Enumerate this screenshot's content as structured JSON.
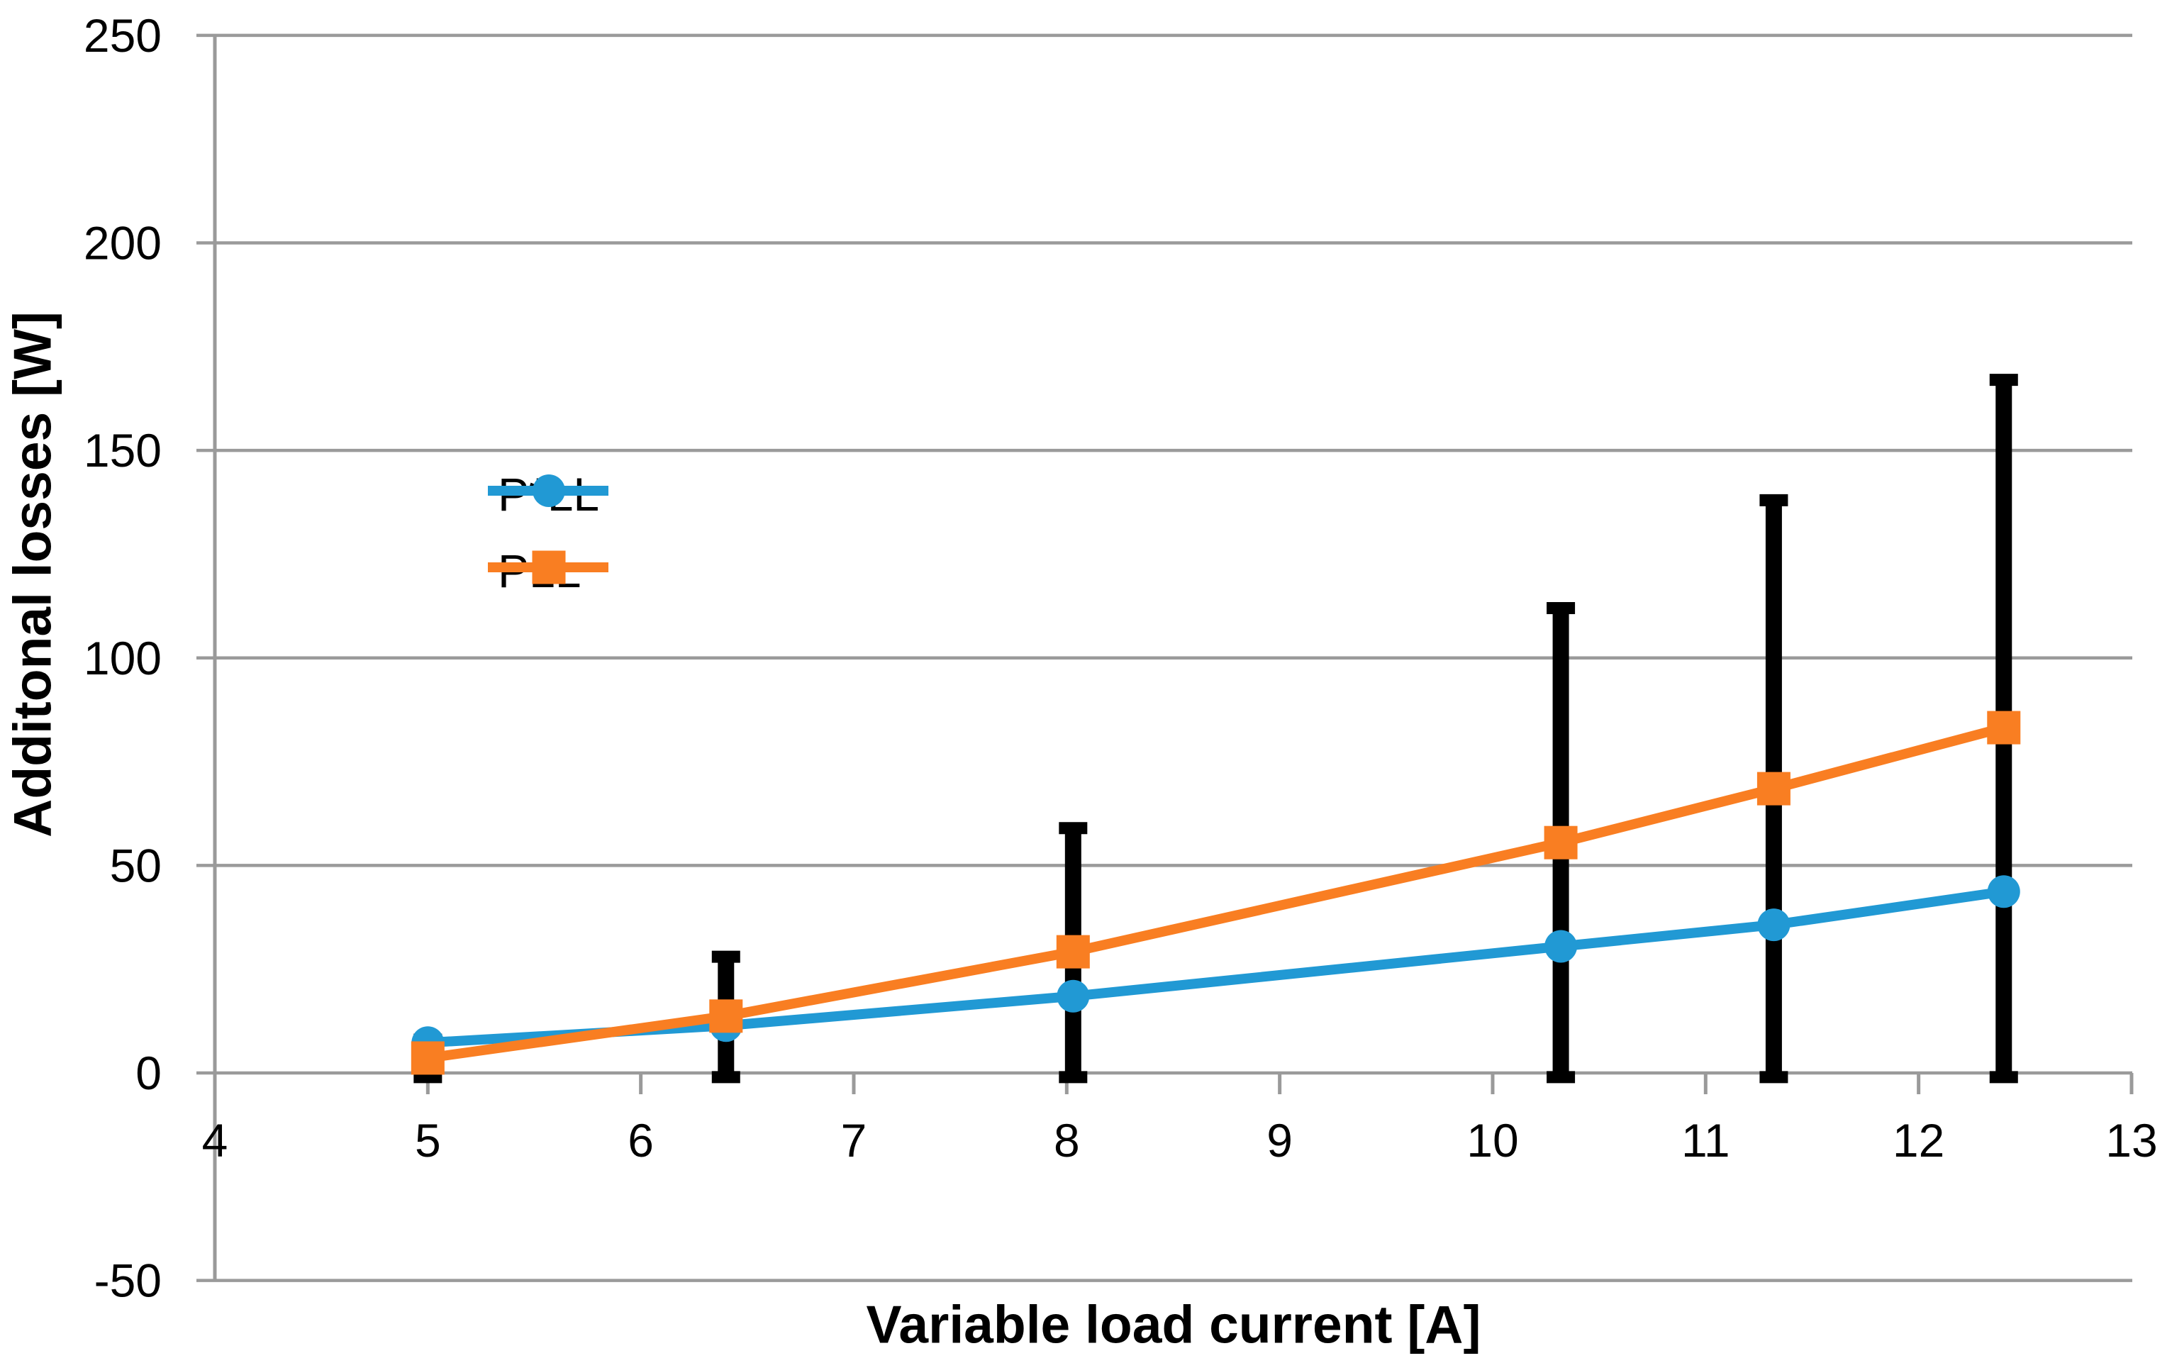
{
  "chart_data": {
    "type": "line",
    "title": "",
    "xlabel": "Variable load current [A]",
    "ylabel": "Additonal losses [W]",
    "xlim": [
      4,
      13
    ],
    "ylim": [
      -50,
      250
    ],
    "x_ticks": [
      4,
      5,
      6,
      7,
      8,
      9,
      10,
      11,
      12,
      13
    ],
    "y_ticks": [
      -50,
      0,
      50,
      100,
      150,
      200,
      250
    ],
    "grid": "horizontal",
    "legend_position": "inside-upper-left",
    "x": [
      5,
      6.4,
      8.03,
      10.32,
      11.32,
      12.4
    ],
    "series": [
      {
        "name": "P*LL",
        "marker": "circle",
        "color": "#2199D4",
        "values": [
          7.3,
          11.4,
          18.5,
          30.5,
          35.7,
          43.7
        ]
      },
      {
        "name": "PLL",
        "marker": "square",
        "color": "#F97E22",
        "values": [
          3.6,
          13.7,
          29.2,
          55.5,
          68.5,
          83.2
        ]
      }
    ],
    "error_bars": {
      "attached_to": "PLL",
      "color": "#000000",
      "points": [
        {
          "x": 5,
          "low": -1,
          "high": 8
        },
        {
          "x": 6.4,
          "low": -1,
          "high": 28
        },
        {
          "x": 8.03,
          "low": -1,
          "high": 59
        },
        {
          "x": 10.32,
          "low": -1,
          "high": 112
        },
        {
          "x": 11.32,
          "low": -1,
          "high": 138
        },
        {
          "x": 12.4,
          "low": -1,
          "high": 167
        }
      ]
    },
    "colors": {
      "background": "#FFFFFF",
      "gridline": "#9A9A9A",
      "axis": "#9A9A9A",
      "text": "#000000"
    }
  }
}
